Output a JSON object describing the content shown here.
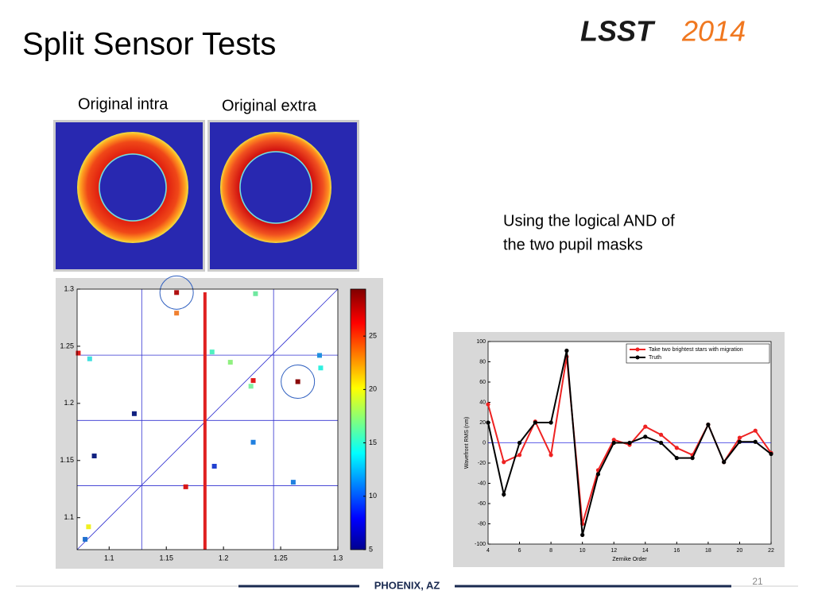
{
  "slide": {
    "title": "Split Sensor Tests",
    "logo": {
      "left": "LSST",
      "right": "2014"
    },
    "image_labels": [
      "Original intra",
      "Original extra"
    ],
    "note": [
      "Using the logical AND of",
      "the two pupil masks"
    ],
    "footer": "PHOENIX, AZ",
    "page_number": "21"
  },
  "chart_data": [
    {
      "type": "scatter",
      "x": [
        1.159,
        1.159,
        1.228,
        1.073,
        1.083,
        1.19,
        1.206,
        1.226,
        1.224,
        1.265,
        1.284,
        1.285,
        1.122,
        1.226,
        1.087,
        1.192,
        1.167,
        1.261,
        1.082,
        1.079
      ],
      "y": [
        1.297,
        1.279,
        1.296,
        1.244,
        1.239,
        1.245,
        1.236,
        1.22,
        1.215,
        1.219,
        1.242,
        1.231,
        1.191,
        1.166,
        1.154,
        1.145,
        1.127,
        1.131,
        1.092,
        1.081
      ],
      "colors": [
        "#b01010",
        "#f08030",
        "#70e8a0",
        "#e01818",
        "#40e0e0",
        "#50f0c0",
        "#90f080",
        "#e01818",
        "#80f0a0",
        "#8a0808",
        "#2090e0",
        "#30f0e0",
        "#102080",
        "#2080e0",
        "#102080",
        "#2040d0",
        "#d81818",
        "#2080e0",
        "#f0f020",
        "#2070d0"
      ],
      "xlim": [
        1.072,
        1.3
      ],
      "ylim": [
        1.072,
        1.3
      ],
      "xticks": [
        1.1,
        1.15,
        1.2,
        1.25,
        1.3
      ],
      "yticks": [
        1.1,
        1.15,
        1.2,
        1.25,
        1.3
      ],
      "reference_x": [
        1.1285,
        1.2438
      ],
      "reference_y": [
        1.2422,
        1.1851,
        1.128
      ],
      "diagonal": true,
      "highlight_x": 1.1838,
      "circled": [
        0,
        9
      ],
      "colorbar": {
        "clim": [
          5,
          29.4
        ],
        "ticks": [
          5,
          10,
          15,
          20,
          25
        ]
      }
    },
    {
      "type": "line",
      "x": [
        4,
        5,
        6,
        7,
        8,
        9,
        10,
        11,
        12,
        13,
        14,
        15,
        16,
        17,
        18,
        19,
        20,
        21,
        22
      ],
      "series": [
        {
          "name": "Take two brightest stars with migration",
          "color": "#ee2222",
          "values": [
            38,
            -19,
            -12,
            21,
            -12,
            85,
            -80,
            -27,
            3,
            -2,
            16,
            8,
            -5,
            -12,
            18,
            -19,
            5,
            12,
            -10
          ]
        },
        {
          "name": "Truth",
          "color": "#000000",
          "values": [
            20,
            -51,
            0,
            20,
            20,
            91,
            -91,
            -31,
            0,
            0,
            6,
            0,
            -15,
            -15,
            18,
            -19,
            1,
            1,
            -11
          ]
        }
      ],
      "xlim": [
        4,
        22
      ],
      "ylim": [
        -100,
        100
      ],
      "xticks": [
        4,
        6,
        8,
        10,
        12,
        14,
        16,
        18,
        20,
        22
      ],
      "yticks": [
        -100,
        -80,
        -60,
        -40,
        -20,
        0,
        20,
        40,
        60,
        80,
        100
      ],
      "xlabel": "Zernike Order",
      "ylabel": "Wavefront RMS (nm)",
      "zero_line": true,
      "legend": "upper right"
    }
  ]
}
